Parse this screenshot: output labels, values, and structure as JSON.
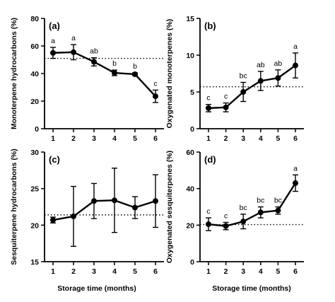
{
  "xlabel": "Storage time (months)",
  "chart_data": [
    {
      "type": "line",
      "panel_label": "(a)",
      "ylabel": "Monoterpene hydrocarbons (%)",
      "x": [
        1,
        2,
        3,
        4,
        5,
        6
      ],
      "y": [
        55,
        55.5,
        48.5,
        40.5,
        39.5,
        23.5
      ],
      "error": [
        4,
        5.5,
        3,
        2,
        1,
        4.5
      ],
      "letters": [
        "a",
        "a",
        "ab",
        "b",
        "b",
        "c"
      ],
      "reference_line": 51,
      "ylim": [
        0,
        80
      ],
      "yticks": [
        0,
        20,
        40,
        60,
        80
      ],
      "xticks": [
        1,
        2,
        3,
        4,
        5,
        6
      ],
      "grid": false
    },
    {
      "type": "line",
      "panel_label": "(b)",
      "ylabel": "Oxygenated monoterpenes (%)",
      "x": [
        1,
        2,
        3,
        4,
        5,
        6
      ],
      "y": [
        2.8,
        2.9,
        5.0,
        6.5,
        6.9,
        8.6
      ],
      "error": [
        0.5,
        0.6,
        1.3,
        1.3,
        1.1,
        1.7
      ],
      "letters": [
        "c",
        "c",
        "bc",
        "ab",
        "ab",
        "a"
      ],
      "reference_line": 5.7,
      "ylim": [
        0,
        15
      ],
      "yticks": [
        0,
        5,
        10,
        15
      ],
      "xticks": [
        1,
        2,
        3,
        4,
        5,
        6
      ],
      "grid": false
    },
    {
      "type": "line",
      "panel_label": "(c)",
      "ylabel": "Sesquiterpene hydrocarbons (%)",
      "x": [
        1,
        2,
        3,
        4,
        5,
        6
      ],
      "y": [
        20.7,
        21.2,
        23.3,
        23.4,
        22.4,
        23.3
      ],
      "error": [
        0.4,
        4.1,
        2.4,
        4.4,
        1.5,
        3.6
      ],
      "letters": [],
      "reference_line": 21.4,
      "ylim": [
        15,
        30
      ],
      "yticks": [
        15,
        20,
        25,
        30
      ],
      "xticks": [
        1,
        2,
        3,
        4,
        5,
        6
      ],
      "grid": false
    },
    {
      "type": "line",
      "panel_label": "(d)",
      "ylabel": "Oxygenated sesquiterpenes (%)",
      "x": [
        1,
        2,
        3,
        4,
        5,
        6
      ],
      "y": [
        20.5,
        19.5,
        22,
        27,
        28,
        43
      ],
      "error": [
        3.5,
        2,
        4,
        3,
        2,
        4.5
      ],
      "letters": [
        "c",
        "c",
        "bc",
        "bc",
        "bc",
        "a"
      ],
      "reference_line": 20.3,
      "ylim": [
        0,
        60
      ],
      "yticks": [
        0,
        20,
        40,
        60
      ],
      "xticks": [
        1,
        2,
        3,
        4,
        5,
        6
      ],
      "grid": false
    }
  ]
}
